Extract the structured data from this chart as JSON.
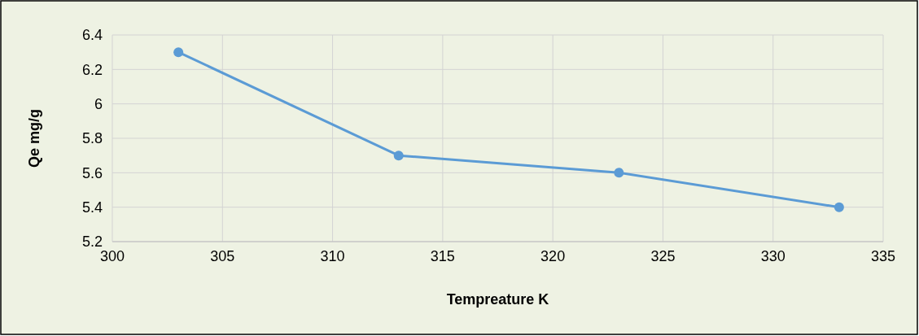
{
  "chart_data": {
    "type": "line",
    "xlabel": "Tempreature K",
    "ylabel": "Qe mg/g",
    "x": [
      303,
      313,
      323,
      333
    ],
    "series": [
      {
        "color": "#5b9bd5",
        "values": [
          6.3,
          5.7,
          5.6,
          5.4
        ]
      }
    ],
    "xlim": [
      300,
      335
    ],
    "xticks": [
      300,
      305,
      310,
      315,
      320,
      325,
      330,
      335
    ],
    "ylim": [
      5.2,
      6.4
    ],
    "yticks": [
      5.2,
      5.4,
      5.6,
      5.8,
      6,
      6.2,
      6.4
    ],
    "grid": true,
    "marker": "circle",
    "line_style": "solid"
  }
}
